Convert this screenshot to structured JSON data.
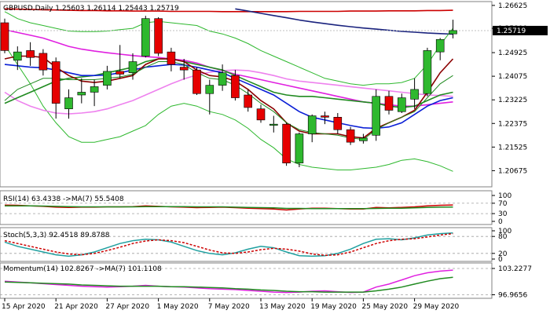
{
  "chart_data": {
    "type": "candlestick",
    "title": "GBPUSD,Daily  1.25603 1.26114 1.25443 1.25719",
    "current_price": 1.25719,
    "colors": {
      "bull": "#2eb82e",
      "bear": "#e60000",
      "wick": "#000000",
      "ma_blue": "#0a1fd6",
      "ma_red": "#cc0000",
      "ma_green": "#208a20",
      "ma_darkred": "#8b0000",
      "ma_magenta": "#e020e0",
      "ma_pink": "#ee82ee",
      "bollinger": "#2eb82e",
      "blue_dark": "#1a237e",
      "price_box": "#000000"
    },
    "price_axis": {
      "min": 1.2015,
      "max": 1.2665,
      "ticks": [
        "1.26625",
        "1.25800",
        "1.24925",
        "1.24075",
        "1.23225",
        "1.22375",
        "1.21525",
        "1.20675"
      ],
      "price_label": "1.25719"
    },
    "dates": [
      "15 Apr 2020",
      "21 Apr 2020",
      "27 Apr 2020",
      "1 May 2020",
      "7 May 2020",
      "13 May 2020",
      "19 May 2020",
      "25 May 2020",
      "29 May 2020"
    ],
    "date_label_candles": [
      0,
      4,
      8,
      12,
      16,
      20,
      24,
      28,
      32
    ],
    "candles": [
      {
        "o": 1.26,
        "h": 1.2615,
        "l": 1.249,
        "c": 1.25
      },
      {
        "o": 1.2465,
        "h": 1.2515,
        "l": 1.243,
        "c": 1.2495
      },
      {
        "o": 1.25,
        "h": 1.253,
        "l": 1.2445,
        "c": 1.2475
      },
      {
        "o": 1.249,
        "h": 1.2505,
        "l": 1.241,
        "c": 1.243
      },
      {
        "o": 1.246,
        "h": 1.2475,
        "l": 1.2255,
        "c": 1.231
      },
      {
        "o": 1.229,
        "h": 1.236,
        "l": 1.2255,
        "c": 1.233
      },
      {
        "o": 1.234,
        "h": 1.24,
        "l": 1.231,
        "c": 1.235
      },
      {
        "o": 1.235,
        "h": 1.2395,
        "l": 1.23,
        "c": 1.237
      },
      {
        "o": 1.2375,
        "h": 1.2445,
        "l": 1.236,
        "c": 1.2425
      },
      {
        "o": 1.2425,
        "h": 1.252,
        "l": 1.24,
        "c": 1.2415
      },
      {
        "o": 1.242,
        "h": 1.249,
        "l": 1.2395,
        "c": 1.246
      },
      {
        "o": 1.248,
        "h": 1.2625,
        "l": 1.2475,
        "c": 1.2615
      },
      {
        "o": 1.2615,
        "h": 1.262,
        "l": 1.248,
        "c": 1.249
      },
      {
        "o": 1.2495,
        "h": 1.251,
        "l": 1.2425,
        "c": 1.245
      },
      {
        "o": 1.244,
        "h": 1.247,
        "l": 1.2395,
        "c": 1.243
      },
      {
        "o": 1.243,
        "h": 1.244,
        "l": 1.234,
        "c": 1.2345
      },
      {
        "o": 1.2345,
        "h": 1.2395,
        "l": 1.227,
        "c": 1.2375
      },
      {
        "o": 1.2375,
        "h": 1.245,
        "l": 1.2355,
        "c": 1.242
      },
      {
        "o": 1.241,
        "h": 1.243,
        "l": 1.232,
        "c": 1.233
      },
      {
        "o": 1.234,
        "h": 1.236,
        "l": 1.228,
        "c": 1.2295
      },
      {
        "o": 1.229,
        "h": 1.2305,
        "l": 1.224,
        "c": 1.225
      },
      {
        "o": 1.2235,
        "h": 1.2265,
        "l": 1.2205,
        "c": 1.2235
      },
      {
        "o": 1.2235,
        "h": 1.224,
        "l": 1.2085,
        "c": 1.2095
      },
      {
        "o": 1.2095,
        "h": 1.2205,
        "l": 1.208,
        "c": 1.22
      },
      {
        "o": 1.22,
        "h": 1.227,
        "l": 1.217,
        "c": 1.2265
      },
      {
        "o": 1.2265,
        "h": 1.228,
        "l": 1.2235,
        "c": 1.226
      },
      {
        "o": 1.226,
        "h": 1.2275,
        "l": 1.22,
        "c": 1.2215
      },
      {
        "o": 1.2215,
        "h": 1.2225,
        "l": 1.216,
        "c": 1.217
      },
      {
        "o": 1.2175,
        "h": 1.22,
        "l": 1.2165,
        "c": 1.2185
      },
      {
        "o": 1.2195,
        "h": 1.236,
        "l": 1.2175,
        "c": 1.2335
      },
      {
        "o": 1.2335,
        "h": 1.2355,
        "l": 1.227,
        "c": 1.2285
      },
      {
        "o": 1.228,
        "h": 1.2345,
        "l": 1.2275,
        "c": 1.233
      },
      {
        "o": 1.2325,
        "h": 1.24,
        "l": 1.229,
        "c": 1.236
      },
      {
        "o": 1.2345,
        "h": 1.251,
        "l": 1.2335,
        "c": 1.25
      },
      {
        "o": 1.2495,
        "h": 1.2545,
        "l": 1.2465,
        "c": 1.254
      },
      {
        "o": 1.256,
        "h": 1.2611,
        "l": 1.2544,
        "c": 1.2572
      }
    ],
    "overlays": [
      {
        "name": "ma_red_flat",
        "color": "ma_red",
        "width": 1.6,
        "values": [
          1.265,
          1.2649,
          1.2648,
          1.2647,
          1.2646,
          1.2645,
          1.2644,
          1.2644,
          1.2643,
          1.2643,
          1.2642,
          1.2642,
          1.2642,
          1.2641,
          1.2641,
          1.2641,
          1.2641,
          1.264,
          1.264,
          1.264,
          1.264,
          1.264,
          1.264,
          1.2641,
          1.2641,
          1.2641,
          1.2641,
          1.2642,
          1.2642,
          1.2642,
          1.2643,
          1.2643,
          1.2643,
          1.2644,
          1.2644,
          1.2645
        ]
      },
      {
        "name": "ma_blue_dark",
        "color": "blue_dark",
        "width": 1.6,
        "values": [
          null,
          null,
          null,
          null,
          null,
          null,
          null,
          null,
          null,
          null,
          null,
          null,
          null,
          null,
          null,
          null,
          null,
          null,
          1.265,
          1.2642,
          1.2634,
          1.2626,
          1.2618,
          1.261,
          1.2603,
          1.2597,
          1.2591,
          1.2586,
          1.2581,
          1.2577,
          1.2573,
          1.2569,
          1.2566,
          1.2563,
          1.2561,
          1.2559
        ]
      },
      {
        "name": "bb_upper",
        "color": "bollinger",
        "width": 1,
        "values": [
          1.264,
          1.2615,
          1.26,
          1.259,
          1.258,
          1.257,
          1.2568,
          1.2568,
          1.257,
          1.2575,
          1.258,
          1.26,
          1.2605,
          1.26,
          1.2595,
          1.259,
          1.257,
          1.256,
          1.2545,
          1.2525,
          1.25,
          1.248,
          1.246,
          1.244,
          1.242,
          1.24,
          1.239,
          1.238,
          1.2375,
          1.238,
          1.238,
          1.2385,
          1.24,
          1.245,
          1.252,
          1.258
        ]
      },
      {
        "name": "bb_lower",
        "color": "bollinger",
        "width": 1,
        "values": [
          1.252,
          1.245,
          1.238,
          1.23,
          1.224,
          1.219,
          1.217,
          1.217,
          1.218,
          1.219,
          1.221,
          1.223,
          1.227,
          1.23,
          1.231,
          1.23,
          1.228,
          1.227,
          1.225,
          1.222,
          1.218,
          1.215,
          1.211,
          1.209,
          1.208,
          1.2075,
          1.207,
          1.207,
          1.2075,
          1.208,
          1.209,
          1.2105,
          1.211,
          1.21,
          1.2085,
          1.2065
        ]
      },
      {
        "name": "ma_magenta",
        "color": "ma_magenta",
        "width": 1.6,
        "values": [
          1.2575,
          1.2565,
          1.2555,
          1.2545,
          1.253,
          1.2515,
          1.2505,
          1.2498,
          1.2492,
          1.2487,
          1.2482,
          1.2478,
          1.2475,
          1.247,
          1.2465,
          1.2455,
          1.244,
          1.2428,
          1.2415,
          1.2405,
          1.2395,
          1.2385,
          1.2375,
          1.2365,
          1.2355,
          1.2345,
          1.2335,
          1.2325,
          1.2315,
          1.231,
          1.2305,
          1.23,
          1.23,
          1.2305,
          1.231,
          1.2315
        ]
      },
      {
        "name": "ma_pink",
        "color": "ma_pink",
        "width": 1.6,
        "values": [
          1.235,
          1.232,
          1.23,
          1.2285,
          1.2275,
          1.2272,
          1.2275,
          1.228,
          1.229,
          1.2305,
          1.232,
          1.234,
          1.236,
          1.238,
          1.2398,
          1.2412,
          1.2422,
          1.2428,
          1.243,
          1.2428,
          1.242,
          1.241,
          1.2398,
          1.239,
          1.2385,
          1.238,
          1.2375,
          1.237,
          1.2365,
          1.236,
          1.2355,
          1.235,
          1.2345,
          1.234,
          1.2338,
          1.2335
        ]
      },
      {
        "name": "ma_green",
        "color": "ma_green",
        "width": 1.6,
        "values": [
          1.231,
          1.233,
          1.235,
          1.237,
          1.239,
          1.24,
          1.2405,
          1.241,
          1.242,
          1.243,
          1.244,
          1.246,
          1.247,
          1.247,
          1.246,
          1.245,
          1.244,
          1.243,
          1.241,
          1.239,
          1.237,
          1.235,
          1.234,
          1.2335,
          1.2335,
          1.233,
          1.2325,
          1.232,
          1.2315,
          1.231,
          1.23,
          1.2295,
          1.23,
          1.232,
          1.234,
          1.235
        ]
      },
      {
        "name": "ma_blue",
        "color": "ma_blue",
        "width": 1.6,
        "values": [
          1.245,
          1.2445,
          1.244,
          1.2438,
          1.243,
          1.242,
          1.241,
          1.241,
          1.2412,
          1.242,
          1.243,
          1.244,
          1.2445,
          1.245,
          1.2448,
          1.244,
          1.243,
          1.242,
          1.24,
          1.238,
          1.236,
          1.234,
          1.231,
          1.228,
          1.226,
          1.225,
          1.224,
          1.223,
          1.2222,
          1.222,
          1.2225,
          1.224,
          1.227,
          1.23,
          1.232,
          1.233
        ]
      },
      {
        "name": "ma_darkred",
        "color": "ma_darkred",
        "width": 1.6,
        "values": [
          1.247,
          1.248,
          1.248,
          1.2475,
          1.244,
          1.241,
          1.239,
          1.2385,
          1.239,
          1.24,
          1.241,
          1.245,
          1.247,
          1.247,
          1.246,
          1.243,
          1.241,
          1.2405,
          1.239,
          1.236,
          1.232,
          1.229,
          1.224,
          1.221,
          1.22,
          1.22,
          1.22,
          1.219,
          1.2185,
          1.222,
          1.224,
          1.226,
          1.2285,
          1.235,
          1.242,
          1.247
        ]
      },
      {
        "name": "ma_green_fast",
        "color": "ma_green",
        "width": 1,
        "values": [
          1.232,
          1.236,
          1.238,
          1.24,
          1.24,
          1.2395,
          1.2395,
          1.2395,
          1.24,
          1.2405,
          1.2415,
          1.244,
          1.246,
          1.246,
          1.245,
          1.242,
          1.24,
          1.2395,
          1.2375,
          1.2345,
          1.231,
          1.228,
          1.224,
          1.2215,
          1.2205,
          1.22,
          1.2195,
          1.2185,
          1.218,
          1.2215,
          1.224,
          1.226,
          1.228,
          1.233,
          1.238,
          1.241
        ]
      }
    ],
    "rsi": {
      "label": "RSI(14) 63.4338  ->MA(7) 55.5408",
      "ylim": [
        0,
        100
      ],
      "tick_labels": [
        "100",
        "70",
        "30",
        "0"
      ],
      "tick_values": [
        100,
        70,
        30,
        0
      ],
      "rsi_values": [
        63,
        62,
        60,
        58,
        55,
        54,
        55,
        55,
        56,
        56,
        57,
        60,
        58,
        56,
        55,
        53,
        54,
        55,
        53,
        51,
        49,
        48,
        44,
        48,
        51,
        51,
        49,
        48,
        48,
        54,
        52,
        54,
        56,
        60,
        62,
        63.43
      ],
      "ma_values": [
        60,
        60,
        60,
        59,
        58,
        57,
        56,
        56,
        56,
        56,
        56,
        57,
        57,
        57,
        57,
        56,
        56,
        56,
        55,
        54,
        53,
        52,
        50,
        50,
        49,
        49,
        49,
        49,
        49,
        50,
        51,
        51,
        52,
        54,
        55,
        55.54
      ]
    },
    "stoch": {
      "label": "Stoch(5,3,3) 92.4518 89.8788",
      "ylim": [
        0,
        100
      ],
      "tick_labels": [
        "100",
        "80",
        "20",
        "0"
      ],
      "tick_values": [
        100,
        80,
        20,
        0
      ],
      "main_values": [
        60,
        45,
        35,
        25,
        15,
        10,
        15,
        25,
        40,
        55,
        65,
        70,
        68,
        60,
        45,
        30,
        20,
        15,
        22,
        35,
        45,
        40,
        25,
        12,
        10,
        12,
        20,
        35,
        55,
        70,
        72,
        68,
        75,
        85,
        90,
        92.45
      ],
      "signal_values": [
        65,
        55,
        45,
        35,
        25,
        18,
        15,
        20,
        30,
        42,
        55,
        64,
        68,
        65,
        58,
        45,
        32,
        22,
        20,
        25,
        33,
        38,
        35,
        28,
        18,
        13,
        15,
        25,
        40,
        55,
        65,
        70,
        72,
        78,
        85,
        89.88
      ]
    },
    "momentum": {
      "label": "Momentum(14) 102.8267  ->MA(7) 101.1108",
      "ylim": [
        96.5,
        103.6
      ],
      "tick_labels": [
        "103.2277",
        "96.9656"
      ],
      "tick_values": [
        103.2277,
        96.9656
      ],
      "mom_values": [
        100.2,
        100.0,
        99.8,
        99.6,
        99.4,
        99.2,
        99.0,
        98.9,
        98.8,
        98.9,
        99.0,
        99.2,
        99.0,
        98.9,
        98.8,
        98.6,
        98.4,
        98.3,
        98.2,
        98.0,
        97.8,
        97.6,
        97.5,
        97.6,
        97.8,
        97.9,
        97.7,
        97.5,
        97.6,
        98.8,
        99.5,
        100.5,
        101.5,
        102.2,
        102.6,
        102.83
      ],
      "ma_values": [
        100.0,
        99.9,
        99.8,
        99.7,
        99.6,
        99.5,
        99.3,
        99.2,
        99.1,
        99.0,
        99.0,
        99.0,
        99.0,
        98.9,
        98.9,
        98.8,
        98.7,
        98.6,
        98.4,
        98.3,
        98.1,
        98.0,
        97.8,
        97.7,
        97.7,
        97.6,
        97.6,
        97.6,
        97.6,
        97.9,
        98.3,
        98.8,
        99.5,
        100.2,
        100.8,
        101.11
      ]
    }
  }
}
